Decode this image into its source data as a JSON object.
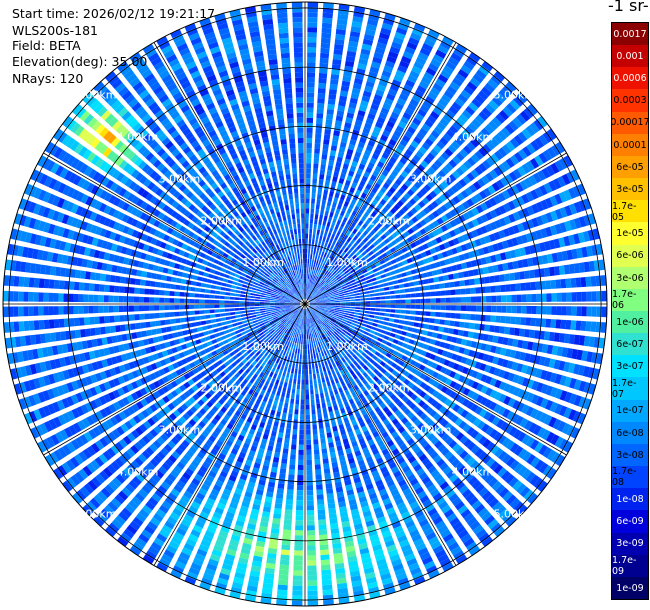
{
  "info": {
    "start_time": "Start time: 2026/02/12 19:21:17",
    "device": "WLS200s-181",
    "field": "Field: BETA",
    "elevation": "Elevation(deg): 35.00",
    "nrays": "NRays: 120"
  },
  "colorbar": {
    "title": "-1 sr-",
    "labels": [
      "0.0017",
      "0.001",
      "0.0006",
      "0.0003",
      "0.00017",
      "0.0001",
      "6e-05",
      "3e-05",
      "1.7e-05",
      "1e-05",
      "6e-06",
      "3e-06",
      "1.7e-06",
      "1e-06",
      "6e-07",
      "3e-07",
      "1.7e-07",
      "1e-07",
      "6e-08",
      "3e-08",
      "1.7e-08",
      "1e-08",
      "6e-09",
      "3e-09",
      "1.7e-09",
      "1e-09"
    ],
    "colors": [
      "#8b0000",
      "#c40000",
      "#ee1100",
      "#ff3300",
      "#ff5a00",
      "#ff8000",
      "#ffa000",
      "#ffc000",
      "#ffe000",
      "#ffff30",
      "#e0ff50",
      "#b0ff70",
      "#80ff80",
      "#50f0a0",
      "#30e0d0",
      "#00e0ff",
      "#00c8ff",
      "#00a8ff",
      "#0088ff",
      "#0066ff",
      "#0044ff",
      "#0022ee",
      "#0000dd",
      "#0000b0",
      "#000090",
      "#000066"
    ]
  },
  "chart_data": {
    "type": "heatmap",
    "projection": "polar-ppi",
    "field": "BETA",
    "elevation_deg": 35.0,
    "n_rays": 120,
    "range_unit": "km",
    "range_rings_km": [
      1,
      2,
      3,
      4,
      5
    ],
    "ring_labels": [
      "1.00km",
      "2.00km",
      "3.00km",
      "4.00km",
      "5.00km"
    ],
    "max_range_km": 5.1,
    "dominant_value": "3e-08",
    "high_regions": [
      {
        "azimuth_deg": [
          305,
          315
        ],
        "range_km": [
          3.8,
          5.0
        ],
        "peak_value": "0.0003"
      },
      {
        "azimuth_deg": [
          150,
          215
        ],
        "range_km": [
          3.3,
          5.1
        ],
        "peak_value": "1e-05"
      }
    ]
  }
}
